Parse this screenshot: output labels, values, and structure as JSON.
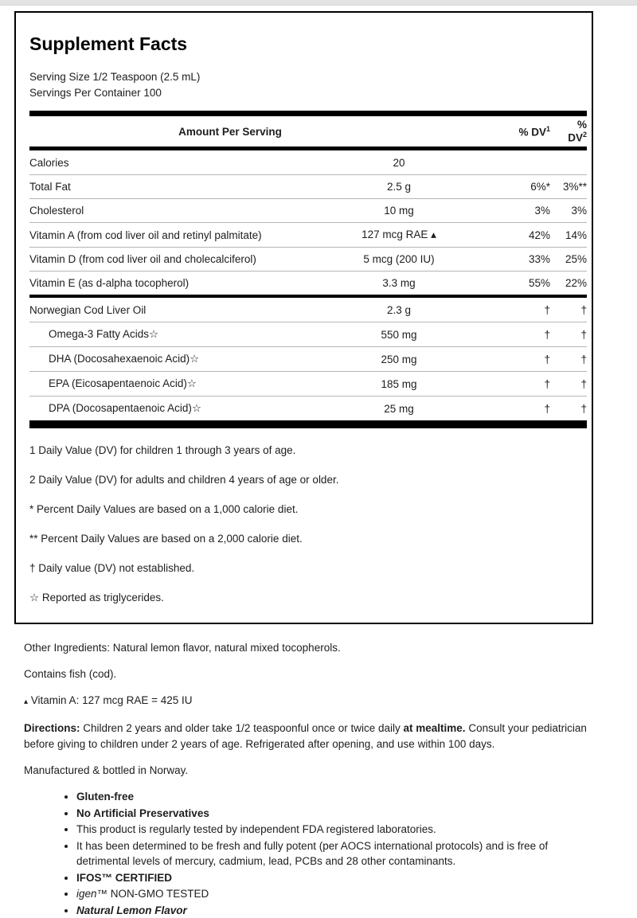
{
  "colors": {
    "text": "#1d1d1d",
    "bar": "#000000",
    "separator": "#b5b5b5",
    "top_strip": "#e3e3e3"
  },
  "label": {
    "title": "Supplement Facts",
    "serving_size": "Serving Size 1/2 Teaspoon (2.5 mL)",
    "servings_per_container": "Servings Per Container 100",
    "header": {
      "amount": "Amount Per Serving",
      "dv1": "% DV",
      "dv1_sup": "1",
      "dv2_line1": "%",
      "dv2_line2": "DV",
      "dv2_sup": "2"
    },
    "main_rows": [
      {
        "name": "Calories",
        "amount": "20",
        "dv1": "",
        "dv2": "",
        "indent": false
      },
      {
        "name": "Total Fat",
        "amount": "2.5 g",
        "dv1": "6%*",
        "dv2": "3%**",
        "indent": false
      },
      {
        "name": "Cholesterol",
        "amount": "10 mg",
        "dv1": "3%",
        "dv2": "3%",
        "indent": false
      },
      {
        "name": "Vitamin A (from cod liver oil and retinyl palmitate)",
        "amount": "127 mcg RAE ▴",
        "dv1": "42%",
        "dv2": "14%",
        "indent": false
      },
      {
        "name": "Vitamin D (from cod liver oil and cholecalciferol)",
        "amount": "5 mcg (200 IU)",
        "dv1": "33%",
        "dv2": "25%",
        "indent": false
      },
      {
        "name": "Vitamin E (as d-alpha tocopherol)",
        "amount": "3.3 mg",
        "dv1": "55%",
        "dv2": "22%",
        "indent": false
      }
    ],
    "oil_rows": [
      {
        "name": "Norwegian Cod Liver Oil",
        "amount": "2.3 g",
        "dv1": "†",
        "dv2": "†",
        "indent": false
      },
      {
        "name": "Omega-3 Fatty Acids☆",
        "amount": "550 mg",
        "dv1": "†",
        "dv2": "†",
        "indent": true
      },
      {
        "name": "DHA (Docosahexaenoic Acid)☆",
        "amount": "250 mg",
        "dv1": "†",
        "dv2": "†",
        "indent": true
      },
      {
        "name": "EPA (Eicosapentaenoic Acid)☆",
        "amount": "185 mg",
        "dv1": "†",
        "dv2": "†",
        "indent": true
      },
      {
        "name": "DPA (Docosapentaenoic Acid)☆",
        "amount": "25 mg",
        "dv1": "†",
        "dv2": "†",
        "indent": true
      }
    ],
    "footnotes": [
      "1 Daily Value (DV) for children 1 through 3 years of age.",
      "2 Daily Value (DV) for adults and children 4 years of age or older.",
      "* Percent Daily Values are based on a 1,000 calorie diet.",
      "** Percent Daily Values are based on a 2,000 calorie diet.",
      "† Daily value (DV) not established.",
      "☆ Reported as triglycerides."
    ]
  },
  "details": {
    "other_ingredients": "Other Ingredients: Natural lemon flavor, natural mixed tocopherols.",
    "contains": "Contains fish (cod).",
    "vitamin_a_note_marker": "▴",
    "vitamin_a_note": " Vitamin A: 127 mcg RAE = 425 IU",
    "directions": {
      "label": "Directions:",
      "part1": " Children 2 years and older take 1/2 teaspoonful once or twice daily ",
      "bold_phrase": "at mealtime.",
      "part2": " Consult your pediatrician before giving to children under 2 years of age. Refrigerated after opening, and use within 100 days."
    },
    "manufactured": "Manufactured & bottled in Norway.",
    "features": [
      {
        "text": "Gluten-free",
        "bold": true,
        "italic": false
      },
      {
        "text": "No Artificial Preservatives",
        "bold": true,
        "italic": false
      },
      {
        "text": "This product is regularly tested by independent FDA registered laboratories.",
        "bold": false,
        "italic": false
      },
      {
        "text": "It has been determined to be fresh and fully potent (per AOCS international protocols) and is free of detrimental levels of mercury, cadmium, lead, PCBs and 28 other contaminants.",
        "bold": false,
        "italic": false
      },
      {
        "text": "IFOS™ CERTIFIED",
        "bold": true,
        "italic": false
      },
      {
        "italic_prefix": "igen",
        "text": "™ NON-GMO TESTED",
        "bold": false,
        "italic": false
      },
      {
        "text": "Natural Lemon Flavor",
        "bold": true,
        "italic": true
      }
    ]
  }
}
